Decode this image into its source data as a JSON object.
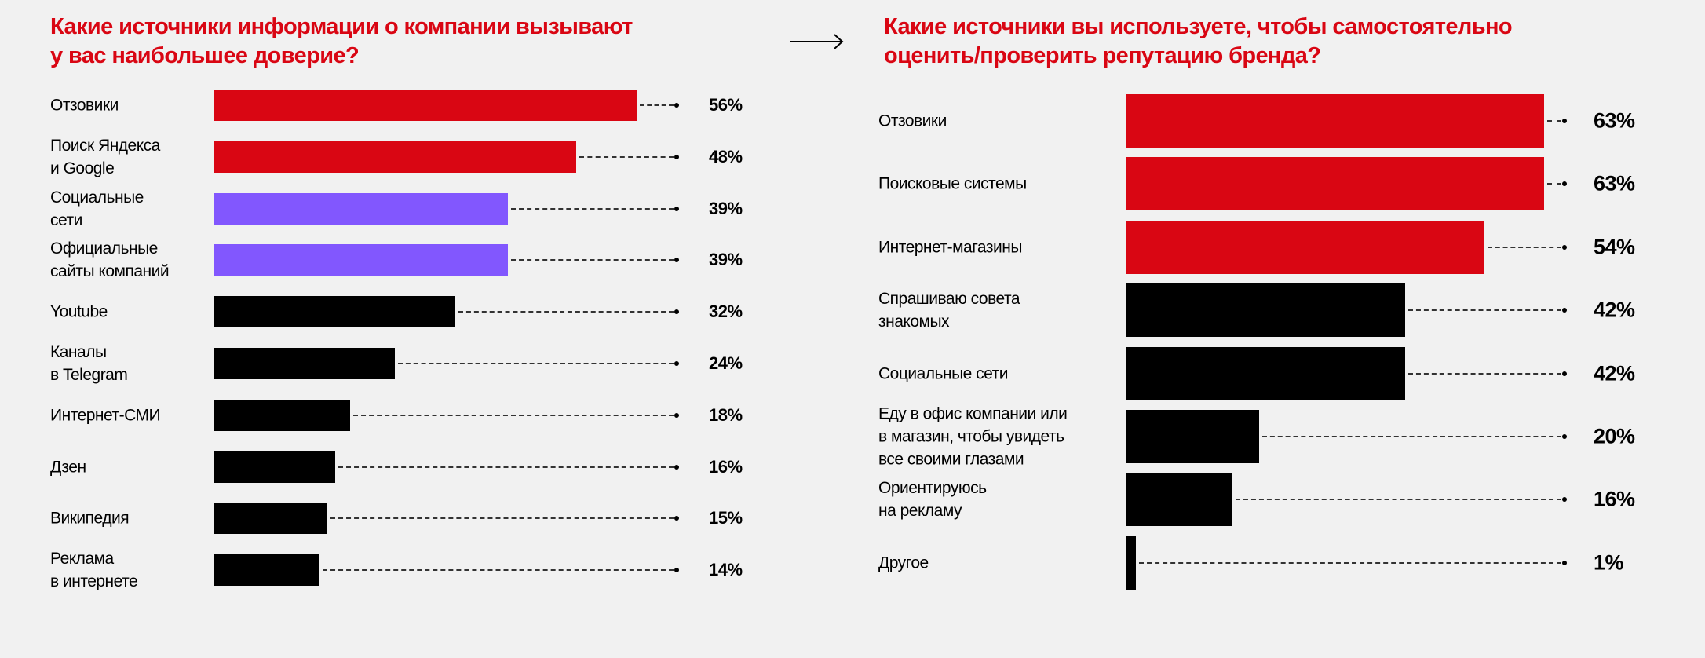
{
  "colors": {
    "red": "#d90613",
    "purple": "#8257fe",
    "black": "#000000",
    "background": "#f1f1f1"
  },
  "arrow_icon": "right-arrow",
  "chart_data": [
    {
      "type": "bar",
      "orientation": "horizontal",
      "title": "Какие источники информации о компании вызывают у вас наибольшее доверие?",
      "title_lines": [
        "Какие источники информации о компании вызывают",
        "у вас наибольшее доверие?"
      ],
      "categories": [
        "Отзовики",
        "Поиск Яндекса\nи Google",
        "Социальные\nсети",
        "Официальные\nсайты компаний",
        "Youtube",
        "Каналы\nв Telegram",
        "Интернет-СМИ",
        "Дзен",
        "Википедия",
        "Реклама\nв интернете"
      ],
      "values": [
        56,
        48,
        39,
        39,
        32,
        24,
        18,
        16,
        15,
        14
      ],
      "labels": [
        "56%",
        "48%",
        "39%",
        "39%",
        "32%",
        "24%",
        "18%",
        "16%",
        "15%",
        "14%"
      ],
      "bar_colors": [
        "#d90613",
        "#d90613",
        "#8257fe",
        "#8257fe",
        "#000000",
        "#000000",
        "#000000",
        "#000000",
        "#000000",
        "#000000"
      ],
      "grid": false
    },
    {
      "type": "bar",
      "orientation": "horizontal",
      "title": "Какие источники вы используете, чтобы самостоятельно оценить/проверить репутацию бренда?",
      "title_lines": [
        "Какие источники вы используете, чтобы самостоятельно",
        "оценить/проверить репутацию бренда?"
      ],
      "categories": [
        "Отзовики",
        "Поисковые системы",
        "Интернет-магазины",
        "Спрашиваю совета\nзнакомых",
        "Социальные сети",
        "Еду в офис компании или\nв магазин, чтобы увидеть\nвсе своими глазами",
        "Ориентируюсь\nна рекламу",
        "Другое"
      ],
      "values": [
        63,
        63,
        54,
        42,
        42,
        20,
        16,
        1
      ],
      "labels": [
        "63%",
        "63%",
        "54%",
        "42%",
        "42%",
        "20%",
        "16%",
        "1%"
      ],
      "bar_colors": [
        "#d90613",
        "#d90613",
        "#d90613",
        "#000000",
        "#000000",
        "#000000",
        "#000000",
        "#000000"
      ],
      "grid": false
    }
  ]
}
